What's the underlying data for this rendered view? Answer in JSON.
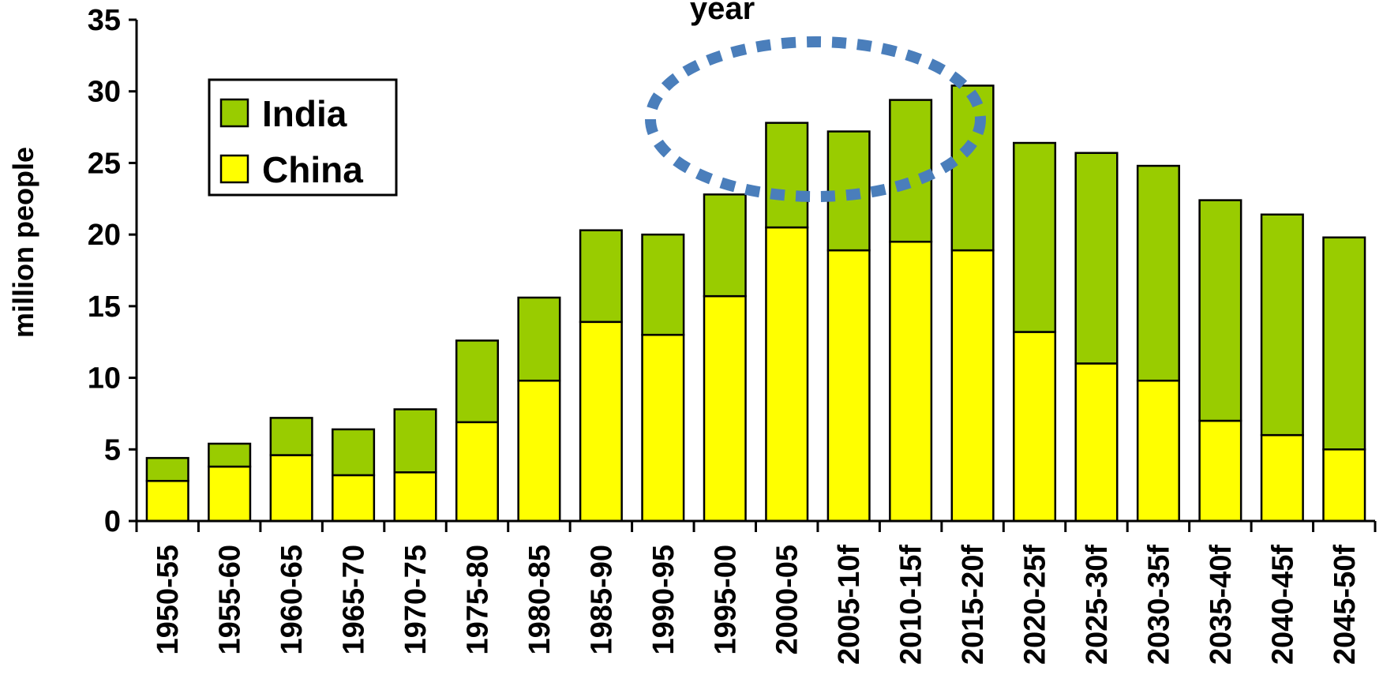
{
  "chart_data": {
    "type": "bar",
    "stacked": true,
    "title": "year",
    "xlabel": "",
    "ylabel": "million people",
    "ylim": [
      0,
      35
    ],
    "yticks": [
      0,
      5,
      10,
      15,
      20,
      25,
      30,
      35
    ],
    "grid": false,
    "legend_position": "top-left",
    "categories": [
      "1950-55",
      "1955-60",
      "1960-65",
      "1965-70",
      "1970-75",
      "1975-80",
      "1980-85",
      "1985-90",
      "1990-95",
      "1995-00",
      "2000-05",
      "2005-10f",
      "2010-15f",
      "2015-20f",
      "2020-25f",
      "2025-30f",
      "2030-35f",
      "2035-40f",
      "2040-45f",
      "2045-50f"
    ],
    "series": [
      {
        "name": "China",
        "color": "#ffff00",
        "values": [
          2.8,
          3.8,
          4.6,
          3.2,
          3.4,
          6.9,
          9.8,
          13.9,
          13.0,
          15.7,
          20.5,
          18.9,
          19.5,
          18.9,
          13.2,
          11.0,
          9.8,
          7.0,
          6.0,
          5.0
        ]
      },
      {
        "name": "India",
        "color": "#99cc00",
        "values": [
          1.6,
          1.6,
          2.6,
          3.2,
          4.4,
          5.7,
          5.8,
          6.4,
          7.0,
          7.1,
          7.3,
          8.3,
          9.9,
          11.5,
          13.2,
          14.7,
          15.0,
          15.4,
          15.4,
          14.8
        ]
      }
    ],
    "annotation": {
      "type": "dotted-ellipse",
      "color": "#4a7ebb",
      "around_categories": [
        "2000-05",
        "2015-20f"
      ]
    }
  },
  "legend": {
    "order": [
      "India",
      "China"
    ]
  }
}
